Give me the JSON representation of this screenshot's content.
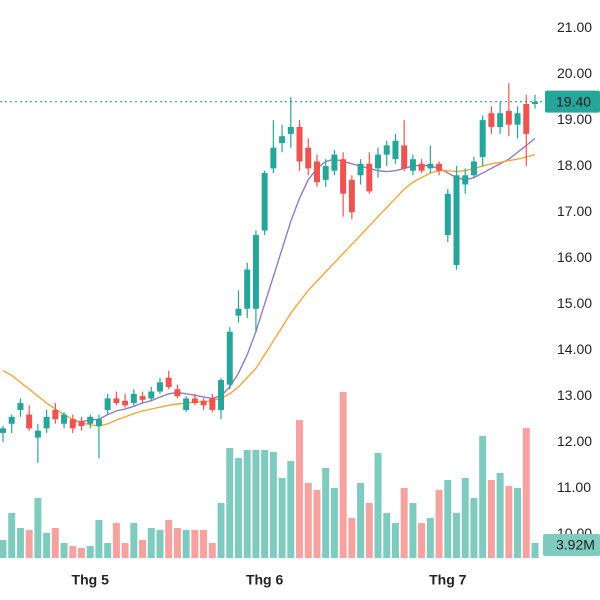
{
  "chart_data": {
    "type": "candlestick",
    "categories": [
      null,
      null,
      null,
      null,
      null,
      null,
      null,
      null,
      null,
      null,
      "Thg 5",
      null,
      null,
      null,
      null,
      null,
      null,
      null,
      null,
      null,
      null,
      null,
      null,
      null,
      null,
      null,
      null,
      null,
      null,
      null,
      "Thg 6",
      null,
      null,
      null,
      null,
      null,
      null,
      null,
      null,
      null,
      null,
      null,
      null,
      null,
      null,
      null,
      null,
      null,
      null,
      null,
      null,
      "Thg 7",
      null,
      null,
      null,
      null,
      null,
      null,
      null,
      null,
      null,
      null
    ],
    "open": [
      12.2,
      12.4,
      12.7,
      12.6,
      12.1,
      12.3,
      12.7,
      12.4,
      12.5,
      12.45,
      12.4,
      12.35,
      12.7,
      12.95,
      12.9,
      12.85,
      13.0,
      12.95,
      13.1,
      13.4,
      13.15,
      12.7,
      12.95,
      12.9,
      12.95,
      12.7,
      13.25,
      14.75,
      14.9,
      14.9,
      16.6,
      17.95,
      18.5,
      18.7,
      18.85,
      18.4,
      18.1,
      17.7,
      17.9,
      18.15,
      17.7,
      17.8,
      18.05,
      17.95,
      18.25,
      18.15,
      18.45,
      17.9,
      18.05,
      17.95,
      18.05,
      16.5,
      15.85,
      17.6,
      17.8,
      18.2,
      19.15,
      18.85,
      19.2,
      18.9,
      19.35,
      19.35
    ],
    "high": [
      12.35,
      12.6,
      12.95,
      12.8,
      12.4,
      12.7,
      12.85,
      12.65,
      12.6,
      12.55,
      12.6,
      12.6,
      13.05,
      13.1,
      13.05,
      13.15,
      13.1,
      13.2,
      13.4,
      13.55,
      13.25,
      13.0,
      13.05,
      12.95,
      13.05,
      13.4,
      14.5,
      15.3,
      15.9,
      16.6,
      17.9,
      19.0,
      18.9,
      19.5,
      19.0,
      18.6,
      18.25,
      18.15,
      18.35,
      18.3,
      17.8,
      18.15,
      18.3,
      18.4,
      18.55,
      18.7,
      19.0,
      18.25,
      18.15,
      18.45,
      18.1,
      17.5,
      18.0,
      17.95,
      18.2,
      19.1,
      19.3,
      19.4,
      19.8,
      19.3,
      19.55,
      19.55
    ],
    "low": [
      12.0,
      12.2,
      12.55,
      12.25,
      11.55,
      12.2,
      12.4,
      12.3,
      12.2,
      12.25,
      12.3,
      11.65,
      12.6,
      12.8,
      12.75,
      12.8,
      12.85,
      12.9,
      13.05,
      13.15,
      12.95,
      12.65,
      12.8,
      12.7,
      12.65,
      12.5,
      13.15,
      14.6,
      14.7,
      14.4,
      16.5,
      17.85,
      18.3,
      18.4,
      17.9,
      17.8,
      17.55,
      17.55,
      17.8,
      16.9,
      16.85,
      17.6,
      17.4,
      17.75,
      18.0,
      18.05,
      17.9,
      17.8,
      17.85,
      17.85,
      17.8,
      16.35,
      15.75,
      17.4,
      17.75,
      18.0,
      18.7,
      18.7,
      18.65,
      18.6,
      18.0,
      19.25
    ],
    "close": [
      12.3,
      12.55,
      12.85,
      12.3,
      12.25,
      12.55,
      12.5,
      12.6,
      12.3,
      12.35,
      12.55,
      12.5,
      12.95,
      12.85,
      12.8,
      13.05,
      12.92,
      13.1,
      13.3,
      13.2,
      13.0,
      12.95,
      12.85,
      12.8,
      12.7,
      13.35,
      14.4,
      14.9,
      15.75,
      16.5,
      17.85,
      18.4,
      18.65,
      18.85,
      18.1,
      17.95,
      17.65,
      18.0,
      18.25,
      17.4,
      17.0,
      18.05,
      17.45,
      18.25,
      18.45,
      18.55,
      17.95,
      18.15,
      17.9,
      18.05,
      17.9,
      17.4,
      17.8,
      17.8,
      18.1,
      19.0,
      18.85,
      19.15,
      18.9,
      19.15,
      18.7,
      19.4
    ],
    "up_color": "#26a69a",
    "down_color": "#ef5350",
    "moving_averages": [
      {
        "color": "#8f7cc8",
        "values": [
          null,
          null,
          null,
          null,
          null,
          null,
          null,
          null,
          12.45,
          12.45,
          12.48,
          12.5,
          12.6,
          12.68,
          12.72,
          12.78,
          12.85,
          12.9,
          12.98,
          13.05,
          13.08,
          13.05,
          13.02,
          12.98,
          12.95,
          13.0,
          13.2,
          13.5,
          13.9,
          14.4,
          15.0,
          15.6,
          16.2,
          16.8,
          17.3,
          17.7,
          17.95,
          18.1,
          18.15,
          18.1,
          18.05,
          18.0,
          17.95,
          17.9,
          17.88,
          17.9,
          17.95,
          18.0,
          18.02,
          18.0,
          17.95,
          17.85,
          17.75,
          17.7,
          17.75,
          17.85,
          17.95,
          18.05,
          18.15,
          18.3,
          18.45,
          18.6
        ]
      },
      {
        "color": "#f2a73b",
        "values": [
          13.55,
          13.45,
          13.3,
          13.15,
          13.0,
          12.85,
          12.72,
          12.6,
          12.5,
          12.42,
          12.38,
          12.35,
          12.4,
          12.48,
          12.55,
          12.62,
          12.68,
          12.72,
          12.76,
          12.8,
          12.83,
          12.85,
          12.87,
          12.88,
          12.9,
          12.95,
          13.05,
          13.2,
          13.4,
          13.6,
          13.9,
          14.2,
          14.5,
          14.8,
          15.05,
          15.3,
          15.5,
          15.7,
          15.9,
          16.1,
          16.3,
          16.5,
          16.7,
          16.9,
          17.1,
          17.3,
          17.5,
          17.65,
          17.75,
          17.85,
          17.9,
          17.9,
          17.88,
          17.9,
          17.95,
          18.0,
          18.05,
          18.08,
          18.12,
          18.15,
          18.2,
          18.25
        ]
      }
    ],
    "volume": {
      "up_color": "#7fcbbf",
      "down_color": "#f6a2a0",
      "values": [
        4.68,
        11.7,
        7.8,
        7.28,
        15.6,
        6.5,
        7.8,
        3.9,
        3.12,
        2.6,
        3.12,
        9.88,
        3.9,
        9.1,
        3.9,
        9.1,
        4.68,
        7.8,
        7.28,
        9.88,
        7.8,
        7.28,
        7.28,
        7.28,
        3.9,
        14.3,
        28.6,
        26,
        28.08,
        28.08,
        28.08,
        27.56,
        20.8,
        25.22,
        35.88,
        19.5,
        17.68,
        23.4,
        18.2,
        43.16,
        10.4,
        19.5,
        14.3,
        27.3,
        11.7,
        9.1,
        18.2,
        14.3,
        9.1,
        10.4,
        17.68,
        20.28,
        11.7,
        20.8,
        15.6,
        31.72,
        20.28,
        22.1,
        18.72,
        18.2,
        33.8,
        3.92
      ],
      "value_labels": [
        null,
        null,
        null,
        null,
        null,
        null,
        null,
        null,
        null,
        null,
        null,
        null,
        null,
        null,
        null,
        null,
        null,
        null,
        null,
        null,
        null,
        null,
        null,
        null,
        null,
        null,
        null,
        null,
        null,
        null,
        null,
        null,
        null,
        null,
        null,
        null,
        null,
        null,
        null,
        null,
        null,
        null,
        null,
        null,
        null,
        null,
        null,
        null,
        null,
        null,
        null,
        null,
        null,
        null,
        null,
        null,
        null,
        null,
        null,
        null,
        null,
        "3.92M"
      ]
    },
    "price_line": {
      "value": 19.4,
      "label": "19.40",
      "color": "#26a69a"
    },
    "ylim": [
      9.68,
      21.61
    ],
    "yticks": [
      {
        "value": 10,
        "label": "10.00"
      },
      {
        "value": 11,
        "label": "11.00"
      },
      {
        "value": 12,
        "label": "12.00"
      },
      {
        "value": 13,
        "label": "13.00"
      },
      {
        "value": 14,
        "label": "14.00"
      },
      {
        "value": 15,
        "label": "15.00"
      },
      {
        "value": 16,
        "label": "16.00"
      },
      {
        "value": 17,
        "label": "17.00"
      },
      {
        "value": 18,
        "label": "18.00"
      },
      {
        "value": 19,
        "label": "19.00"
      },
      {
        "value": 20,
        "label": "20.00"
      },
      {
        "value": 21,
        "label": "21.00"
      }
    ]
  }
}
